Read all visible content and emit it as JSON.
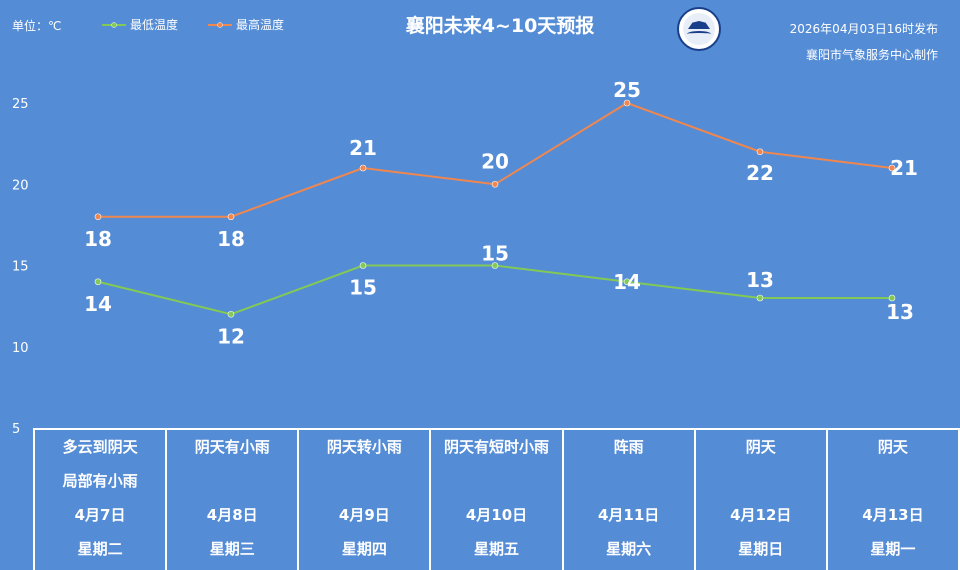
{
  "header": {
    "unit": "单位：℃",
    "title": "襄阳未来4~10天预报",
    "publish_time": "2026年04月03日16时发布",
    "publisher": "襄阳市气象服务中心制作",
    "logo_text": "襄阳气象"
  },
  "legend": {
    "low_label": "最低温度",
    "high_label": "最高温度"
  },
  "colors": {
    "background": "#548cd6",
    "low": "#82c956",
    "high": "#f0874f"
  },
  "chart_data": {
    "type": "line",
    "ylim": [
      5,
      25
    ],
    "yticks": [
      5,
      10,
      15,
      20,
      25
    ],
    "categories": [
      "4月7日",
      "4月8日",
      "4月9日",
      "4月10日",
      "4月11日",
      "4月12日",
      "4月13日"
    ],
    "series": [
      {
        "name": "最低温度",
        "values": [
          14,
          12,
          15,
          15,
          14,
          13,
          13
        ]
      },
      {
        "name": "最高温度",
        "values": [
          18,
          18,
          21,
          20,
          25,
          22,
          21
        ]
      }
    ],
    "legend_position": "top-left",
    "grid": false
  },
  "days": [
    {
      "weather": [
        "多云到阴天",
        "局部有小雨"
      ],
      "date": "4月7日",
      "weekday": "星期二"
    },
    {
      "weather": [
        "阴天有小雨",
        ""
      ],
      "date": "4月8日",
      "weekday": "星期三"
    },
    {
      "weather": [
        "阴天转小雨",
        ""
      ],
      "date": "4月9日",
      "weekday": "星期四"
    },
    {
      "weather": [
        "阴天有短时小雨",
        ""
      ],
      "date": "4月10日",
      "weekday": "星期五"
    },
    {
      "weather": [
        "阵雨",
        ""
      ],
      "date": "4月11日",
      "weekday": "星期六"
    },
    {
      "weather": [
        "阴天",
        ""
      ],
      "date": "4月12日",
      "weekday": "星期日"
    },
    {
      "weather": [
        "阴天",
        ""
      ],
      "date": "4月13日",
      "weekday": "星期一"
    }
  ]
}
